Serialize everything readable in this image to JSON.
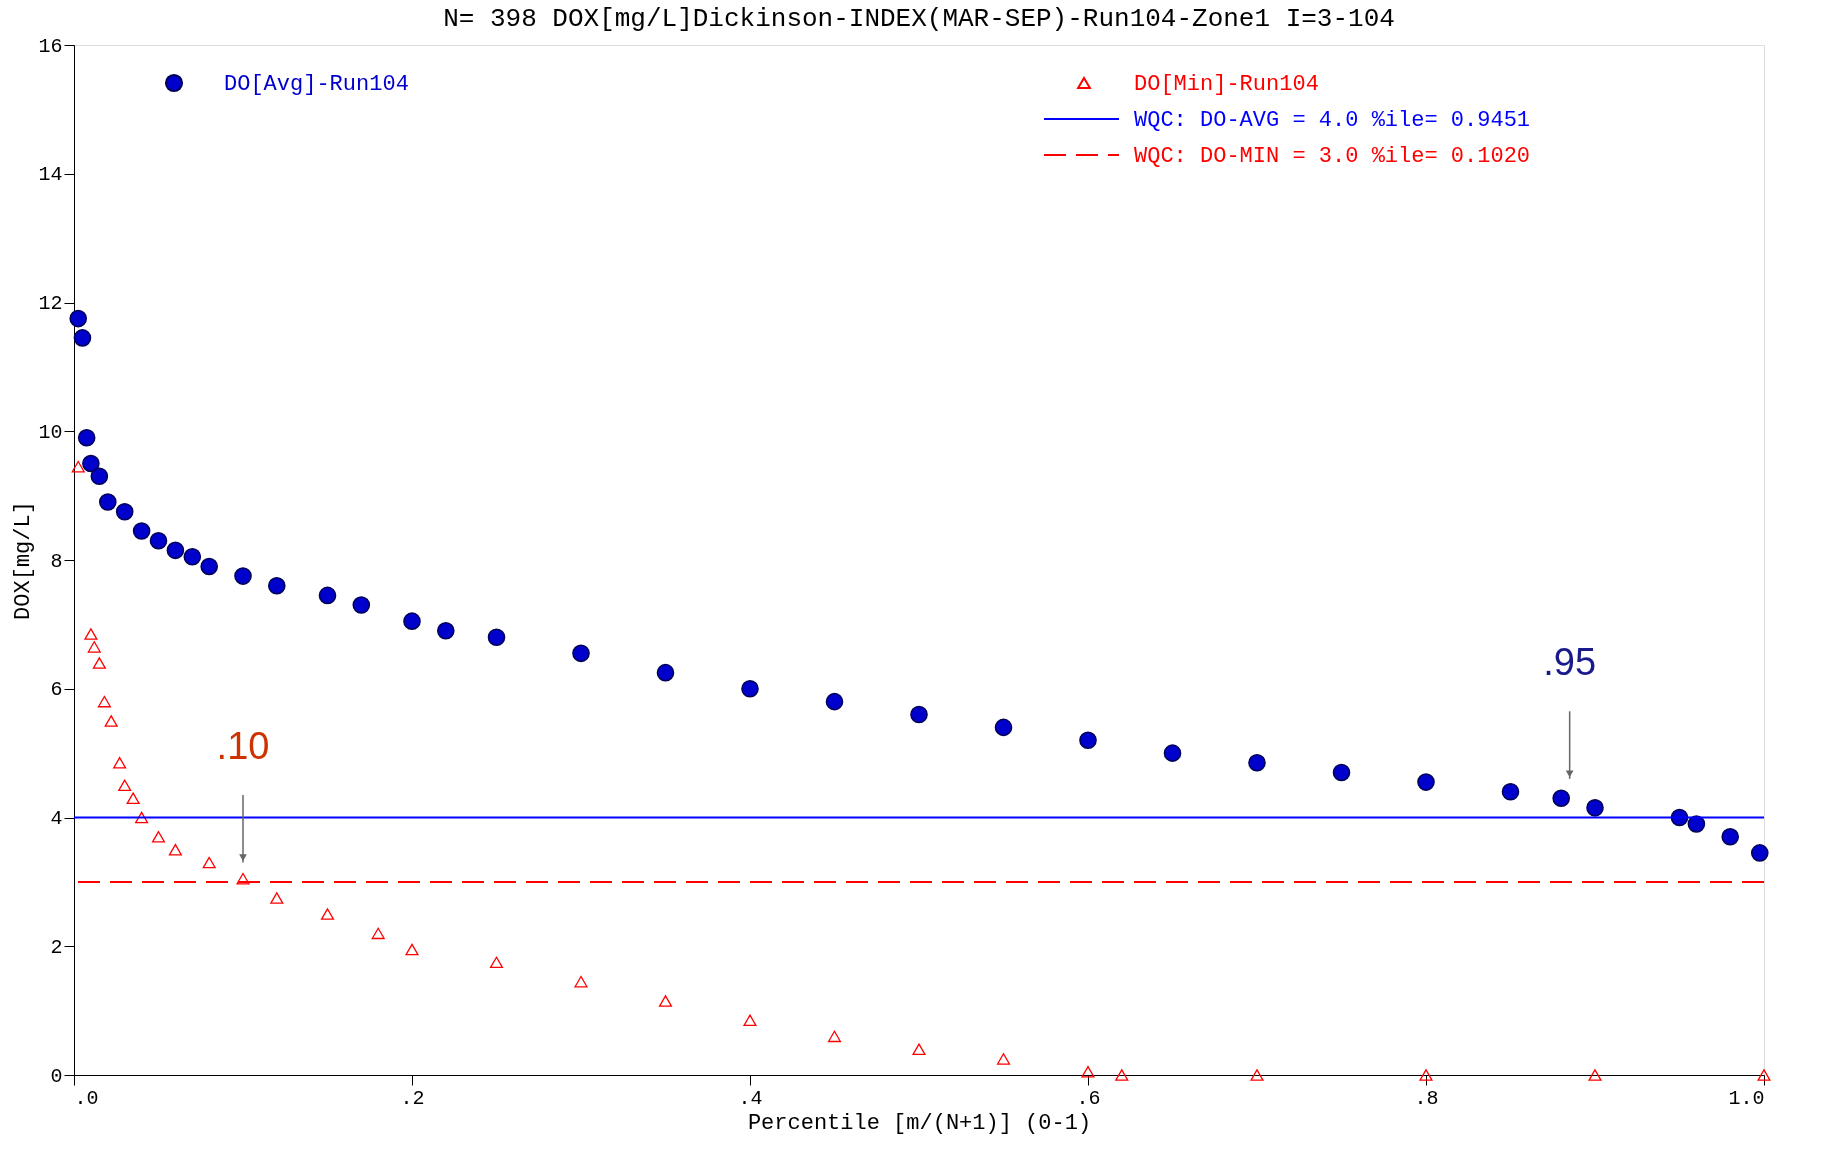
{
  "chart_data": {
    "type": "scatter",
    "title": "N=   398 DOX[mg/L]Dickinson-INDEX(MAR-SEP)-Run104-Zone1 I=3-104",
    "xlabel": "Percentile [m/(N+1)] (0-1)",
    "ylabel": "DOX[mg/L]",
    "xlim": [
      0,
      1
    ],
    "ylim": [
      0,
      16
    ],
    "xticks": [
      {
        "value": 0,
        "label": ".0"
      },
      {
        "value": 0.2,
        "label": ".2"
      },
      {
        "value": 0.4,
        "label": ".4"
      },
      {
        "value": 0.6,
        "label": ".6"
      },
      {
        "value": 0.8,
        "label": ".8"
      },
      {
        "value": 1.0,
        "label": "1.0"
      }
    ],
    "yticks": [
      0,
      2,
      4,
      6,
      8,
      10,
      12,
      14,
      16
    ],
    "grid": false,
    "legend": "top",
    "series": [
      {
        "name": "DO[Avg]-Run104",
        "color": "#0000cc",
        "marker": "circle",
        "x": [
          0.0025,
          0.005,
          0.0075,
          0.01,
          0.015,
          0.02,
          0.03,
          0.04,
          0.05,
          0.06,
          0.07,
          0.08,
          0.1,
          0.12,
          0.15,
          0.17,
          0.2,
          0.22,
          0.25,
          0.3,
          0.35,
          0.4,
          0.45,
          0.5,
          0.55,
          0.6,
          0.65,
          0.7,
          0.75,
          0.8,
          0.85,
          0.88,
          0.9,
          0.95,
          0.96,
          0.98,
          0.9975
        ],
        "values": [
          11.75,
          11.45,
          9.9,
          9.5,
          9.3,
          8.9,
          8.75,
          8.45,
          8.3,
          8.15,
          8.05,
          7.9,
          7.75,
          7.6,
          7.45,
          7.3,
          7.05,
          6.9,
          6.8,
          6.55,
          6.25,
          6.0,
          5.8,
          5.6,
          5.4,
          5.2,
          5.0,
          4.85,
          4.7,
          4.55,
          4.4,
          4.3,
          4.15,
          4.0,
          3.9,
          3.7,
          3.45
        ]
      },
      {
        "name": "DO[Min]-Run104",
        "color": "#ff0000",
        "marker": "triangle",
        "x": [
          0.0025,
          0.01,
          0.012,
          0.015,
          0.018,
          0.022,
          0.027,
          0.03,
          0.035,
          0.04,
          0.05,
          0.06,
          0.08,
          0.1,
          0.12,
          0.15,
          0.18,
          0.2,
          0.25,
          0.3,
          0.35,
          0.4,
          0.45,
          0.5,
          0.55,
          0.6,
          0.62,
          0.7,
          0.8,
          0.9,
          1.0
        ],
        "values": [
          9.45,
          6.85,
          6.65,
          6.4,
          5.8,
          5.5,
          4.85,
          4.5,
          4.3,
          4.0,
          3.7,
          3.5,
          3.3,
          3.05,
          2.75,
          2.5,
          2.2,
          1.95,
          1.75,
          1.45,
          1.15,
          0.85,
          0.6,
          0.4,
          0.25,
          0.05,
          0.0,
          0.0,
          0.0,
          0.0,
          0.0
        ]
      }
    ],
    "ref_lines": [
      {
        "axis": "y",
        "value": 4,
        "label": "WQC: DO-AVG = 4.0 %ile=  0.9451",
        "color": "#0000ff",
        "line_style": "solid"
      },
      {
        "axis": "y",
        "value": 3,
        "label": "WQC: DO-MIN = 3.0 %ile=  0.1020",
        "color": "#ff0000",
        "line_style": "dashed"
      }
    ],
    "annotations": [
      {
        "text": ".95",
        "x": 0.885,
        "y": 4.35
      },
      {
        "text": ".10",
        "x": 0.1,
        "y": 3.05
      }
    ]
  }
}
